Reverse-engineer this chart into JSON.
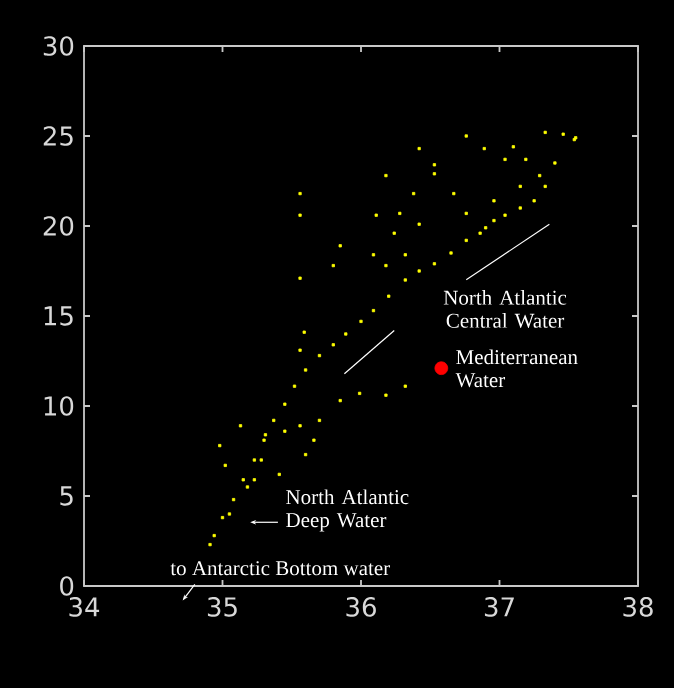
{
  "chart_data": {
    "type": "scatter",
    "xlim": [
      34,
      38
    ],
    "ylim": [
      0,
      30
    ],
    "xticks": [
      34,
      35,
      36,
      37,
      38
    ],
    "yticks": [
      0,
      5,
      10,
      15,
      20,
      25,
      30
    ],
    "grid": false,
    "marker": "square",
    "series": [
      {
        "color": "#ffff00",
        "x": [
          34.91,
          34.94,
          35.08,
          35.23,
          35.37,
          35.52,
          35.7,
          35.89,
          36.09,
          36.32,
          36.53,
          36.76,
          37.04,
          37.25,
          37.33,
          37.54,
          34.98,
          35.13,
          35.41,
          35.56,
          35.7,
          35.85,
          35.99,
          36.18,
          36.32,
          35.66,
          35.31,
          35.02,
          35.23,
          35.56,
          35.6,
          35.56,
          35.56,
          35.56,
          35.59,
          35.85,
          35.8,
          36.11,
          36.18,
          36.42,
          36.76,
          36.89,
          37.1,
          37.33,
          37.46,
          37.55,
          36.53,
          37.19,
          36.38,
          36.67,
          36.96,
          36.28,
          36.42,
          36.76,
          36.86,
          36.24,
          36.32,
          36.09,
          36.18,
          36.96,
          37.15,
          37.29,
          37.04,
          36.53,
          35.0,
          35.15,
          35.3,
          35.45,
          35.6,
          35.8,
          36.0,
          36.2,
          36.42,
          36.65,
          36.9,
          37.15,
          37.4,
          35.05,
          35.18,
          35.28,
          35.45
        ],
        "values": [
          2.3,
          2.8,
          4.8,
          7.0,
          9.2,
          11.1,
          12.8,
          14.0,
          15.3,
          17.0,
          17.9,
          19.2,
          20.6,
          21.4,
          22.2,
          24.8,
          7.8,
          8.9,
          6.2,
          8.9,
          9.2,
          10.3,
          10.7,
          10.6,
          11.1,
          8.1,
          8.4,
          6.7,
          5.9,
          13.1,
          7.3,
          21.8,
          20.6,
          17.1,
          14.1,
          18.9,
          17.8,
          20.6,
          22.8,
          24.3,
          25.0,
          24.3,
          24.4,
          25.2,
          25.1,
          24.9,
          23.4,
          23.7,
          21.8,
          21.8,
          21.4,
          20.7,
          20.1,
          20.7,
          19.6,
          19.6,
          18.4,
          18.4,
          17.8,
          20.3,
          22.2,
          22.8,
          23.7,
          22.9,
          3.8,
          5.9,
          8.1,
          10.1,
          12.0,
          13.4,
          14.7,
          16.1,
          17.5,
          18.5,
          19.9,
          21.0,
          23.5,
          4.0,
          5.5,
          7.0,
          8.6
        ]
      },
      {
        "color": "#ff0000",
        "marker": "circle",
        "x": [
          36.58
        ],
        "values": [
          12.1
        ]
      }
    ],
    "annotations": [
      "North Atlantic Central Water",
      "Mediterranean Water",
      "North Atlantic Deep Water",
      "to Antarctic Bottom water"
    ]
  }
}
